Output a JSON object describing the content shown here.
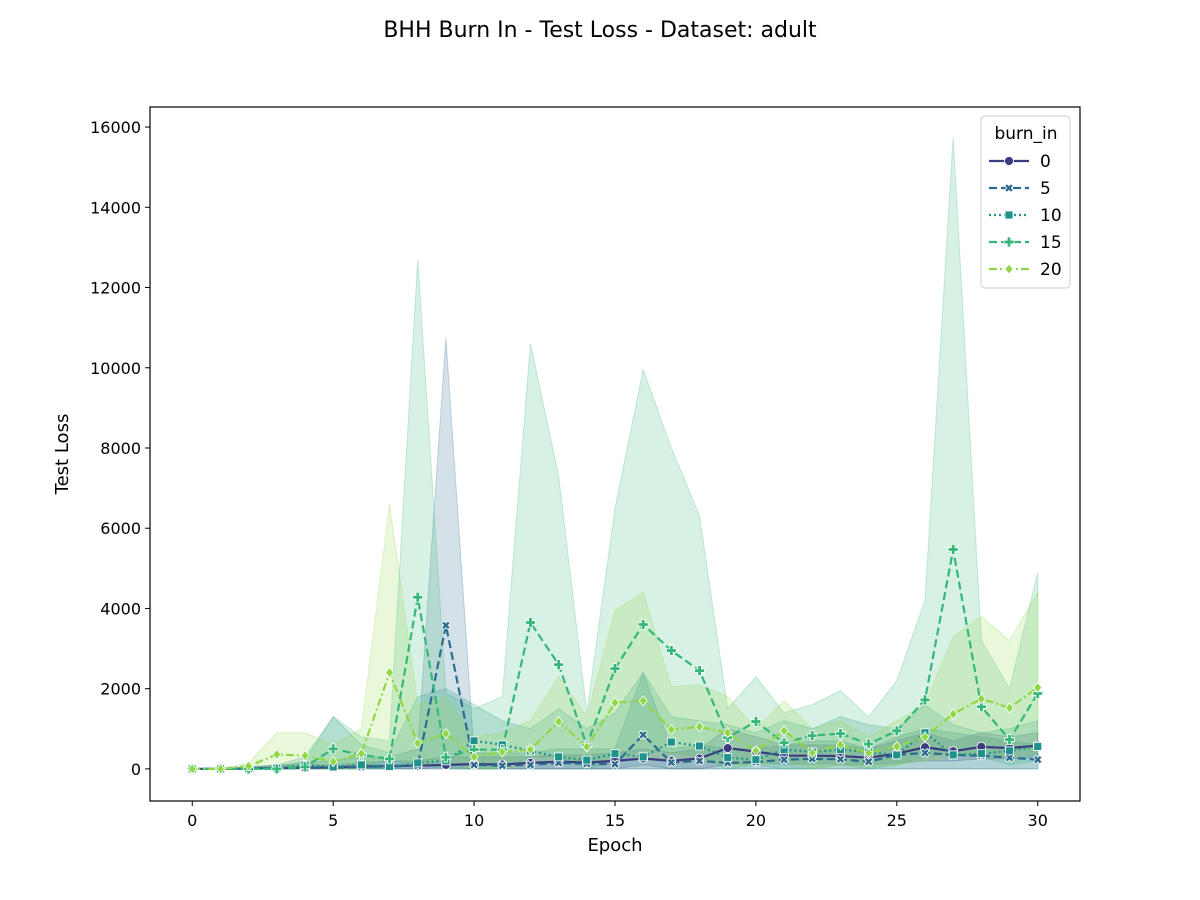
{
  "chart_data": {
    "type": "line",
    "title": "BHH Burn In - Test Loss - Dataset: adult",
    "xlabel": "Epoch",
    "ylabel": "Test Loss",
    "xlim": [
      -1.5,
      31.5
    ],
    "ylim": [
      -800,
      16500
    ],
    "xticks": [
      0,
      5,
      10,
      15,
      20,
      25,
      30
    ],
    "yticks": [
      0,
      2000,
      4000,
      6000,
      8000,
      10000,
      12000,
      14000,
      16000
    ],
    "grid": false,
    "legend_title": "burn_in",
    "legend_position": "top-right",
    "x": [
      0,
      1,
      2,
      3,
      4,
      5,
      6,
      7,
      8,
      9,
      10,
      11,
      12,
      13,
      14,
      15,
      16,
      17,
      18,
      19,
      20,
      21,
      22,
      23,
      24,
      25,
      26,
      27,
      28,
      29,
      30
    ],
    "series": [
      {
        "name": "0",
        "color": "#3b3c7f",
        "dash": "solid",
        "marker": "circle",
        "values": [
          0,
          0,
          10,
          20,
          30,
          40,
          60,
          70,
          80,
          100,
          120,
          110,
          150,
          180,
          160,
          200,
          260,
          200,
          260,
          520,
          430,
          330,
          330,
          320,
          280,
          380,
          540,
          440,
          550,
          520,
          580
        ],
        "band_low": [
          0,
          0,
          0,
          0,
          0,
          0,
          0,
          0,
          0,
          0,
          0,
          0,
          0,
          0,
          0,
          0,
          0,
          0,
          0,
          100,
          150,
          120,
          120,
          120,
          100,
          150,
          200,
          200,
          250,
          250,
          300
        ],
        "band_high": [
          0,
          0,
          40,
          80,
          100,
          100,
          150,
          200,
          200,
          300,
          300,
          300,
          300,
          350,
          350,
          400,
          500,
          400,
          500,
          1000,
          800,
          600,
          600,
          600,
          500,
          700,
          900,
          700,
          900,
          800,
          900
        ]
      },
      {
        "name": "5",
        "color": "#2c6b8e",
        "dash": "dashed",
        "marker": "x",
        "values": [
          0,
          0,
          10,
          20,
          20,
          30,
          50,
          60,
          80,
          3580,
          100,
          80,
          100,
          150,
          130,
          120,
          850,
          160,
          200,
          150,
          170,
          230,
          250,
          240,
          180,
          350,
          400,
          350,
          330,
          280,
          230
        ],
        "band_low": [
          0,
          0,
          0,
          0,
          0,
          0,
          0,
          0,
          0,
          50,
          0,
          0,
          0,
          0,
          0,
          0,
          100,
          0,
          0,
          0,
          0,
          0,
          0,
          0,
          0,
          0,
          0,
          0,
          0,
          0,
          0
        ],
        "band_high": [
          0,
          0,
          50,
          100,
          150,
          200,
          300,
          300,
          500,
          10750,
          400,
          400,
          400,
          500,
          500,
          500,
          2400,
          500,
          600,
          500,
          500,
          600,
          700,
          700,
          500,
          800,
          1000,
          900,
          800,
          700,
          600
        ]
      },
      {
        "name": "10",
        "color": "#1f938b",
        "dash": "dotted",
        "marker": "square",
        "values": [
          0,
          0,
          10,
          20,
          100,
          50,
          100,
          60,
          150,
          200,
          700,
          600,
          450,
          300,
          220,
          380,
          300,
          670,
          570,
          280,
          230,
          480,
          420,
          480,
          420,
          350,
          900,
          350,
          380,
          450,
          560
        ],
        "band_low": [
          0,
          0,
          0,
          0,
          0,
          0,
          0,
          0,
          0,
          0,
          0,
          0,
          0,
          0,
          0,
          0,
          0,
          0,
          0,
          0,
          0,
          0,
          0,
          0,
          0,
          0,
          0,
          0,
          0,
          0,
          0
        ],
        "band_high": [
          0,
          0,
          50,
          100,
          300,
          1300,
          600,
          400,
          1800,
          2000,
          1600,
          1200,
          1000,
          1500,
          1000,
          1400,
          2400,
          1300,
          1200,
          1100,
          900,
          1200,
          1000,
          1300,
          1100,
          1000,
          1600,
          1100,
          900,
          1000,
          1200
        ]
      },
      {
        "name": "15",
        "color": "#35b779",
        "dash": "dashed",
        "marker": "plus",
        "values": [
          0,
          0,
          0,
          0,
          50,
          500,
          350,
          250,
          4280,
          290,
          480,
          480,
          3650,
          2600,
          580,
          2500,
          3600,
          2950,
          2450,
          780,
          1180,
          650,
          830,
          880,
          620,
          950,
          1720,
          5470,
          1550,
          730,
          1880
        ],
        "band_low": [
          0,
          0,
          0,
          0,
          0,
          0,
          0,
          0,
          150,
          0,
          0,
          0,
          300,
          300,
          0,
          200,
          500,
          400,
          300,
          0,
          100,
          0,
          0,
          100,
          0,
          100,
          300,
          400,
          300,
          100,
          200
        ],
        "band_high": [
          0,
          0,
          0,
          50,
          200,
          1300,
          800,
          700,
          12700,
          1900,
          1500,
          1800,
          10600,
          7300,
          1400,
          6500,
          9950,
          8000,
          6300,
          1500,
          2300,
          1400,
          1600,
          1950,
          1300,
          2200,
          4200,
          15750,
          3200,
          2000,
          4900
        ]
      },
      {
        "name": "20",
        "color": "#8fd744",
        "dash": "dashdot",
        "marker": "diamond",
        "values": [
          0,
          0,
          70,
          360,
          330,
          180,
          380,
          2400,
          640,
          880,
          300,
          420,
          480,
          1180,
          550,
          1650,
          1700,
          980,
          1050,
          900,
          450,
          950,
          400,
          600,
          400,
          560,
          800,
          1370,
          1750,
          1520,
          2030
        ],
        "band_low": [
          0,
          0,
          0,
          0,
          0,
          0,
          0,
          300,
          100,
          200,
          0,
          0,
          100,
          300,
          100,
          300,
          300,
          200,
          200,
          100,
          100,
          200,
          0,
          100,
          50,
          100,
          200,
          300,
          400,
          300,
          400
        ],
        "band_high": [
          0,
          0,
          150,
          900,
          900,
          600,
          1000,
          6600,
          1600,
          1800,
          800,
          900,
          1200,
          2300,
          1300,
          3950,
          4400,
          2050,
          2100,
          1800,
          1000,
          1700,
          1000,
          1200,
          800,
          1200,
          1600,
          3300,
          3800,
          3200,
          4400
        ]
      }
    ]
  }
}
